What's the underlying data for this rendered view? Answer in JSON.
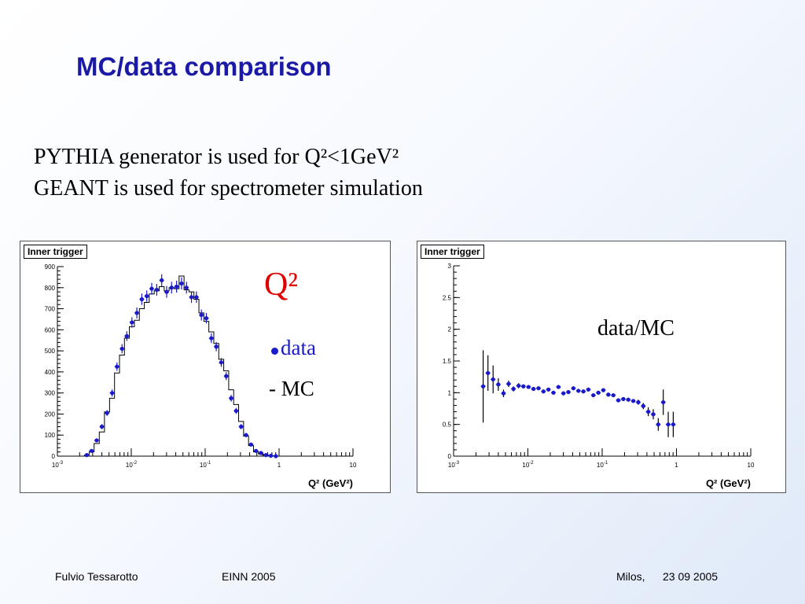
{
  "slide": {
    "title": "MC/data comparison",
    "bullets": [
      "PYTHIA generator is used for Q²<1GeV²",
      "GEANT is used for spectrometer simulation"
    ],
    "footer": {
      "author": "Fulvio Tessarotto",
      "conference": "EINN 2005",
      "place": "Milos,",
      "date": "23 09 2005"
    }
  },
  "annotations": {
    "q2": "Q²",
    "data": "data",
    "mc": "- MC",
    "ratio": "data/MC"
  },
  "colors": {
    "title": "#1a1aa6",
    "data_points": "#1a1acc",
    "q2_label": "#e00000",
    "mc_histogram": "#000000"
  },
  "chart_data": [
    {
      "type": "scatter",
      "title": "Inner trigger",
      "xlabel": "Q² (GeV²)",
      "ylabel": "",
      "xscale": "log",
      "xlim": [
        0.001,
        10
      ],
      "ylim": [
        0,
        900
      ],
      "xticks": [
        "10-3",
        "10-2",
        "10-1",
        "1",
        "10"
      ],
      "yticks": [
        0,
        100,
        200,
        300,
        400,
        500,
        600,
        700,
        800,
        900
      ],
      "legend": "top-left",
      "grid": false,
      "series": [
        {
          "name": "data",
          "x": [
            0.0025,
            0.0029,
            0.0034,
            0.004,
            0.0047,
            0.0055,
            0.0064,
            0.0075,
            0.0087,
            0.0102,
            0.0119,
            0.0139,
            0.0162,
            0.0189,
            0.0221,
            0.0258,
            0.0301,
            0.0351,
            0.041,
            0.0479,
            0.0559,
            0.0652,
            0.0761,
            0.0889,
            0.1037,
            0.1211,
            0.1413,
            0.165,
            0.1926,
            0.2248,
            0.2624,
            0.3063,
            0.3576,
            0.4174,
            0.4873,
            0.5688,
            0.664,
            0.7751,
            0.9048
          ],
          "y": [
            5,
            25,
            75,
            140,
            205,
            300,
            425,
            510,
            570,
            635,
            680,
            745,
            760,
            795,
            790,
            835,
            780,
            800,
            805,
            820,
            800,
            755,
            755,
            670,
            655,
            560,
            520,
            445,
            380,
            275,
            215,
            140,
            100,
            55,
            25,
            15,
            5,
            2,
            0
          ],
          "yerr": [
            4,
            6,
            9,
            12,
            14,
            17,
            20,
            22,
            23,
            25,
            26,
            27,
            27,
            28,
            28,
            29,
            28,
            28,
            28,
            29,
            28,
            27,
            27,
            26,
            25,
            23,
            22,
            21,
            19,
            16,
            14,
            12,
            10,
            7,
            5,
            4,
            2,
            1,
            1
          ]
        },
        {
          "name": "MC",
          "x": [
            0.0025,
            0.0029,
            0.0034,
            0.004,
            0.0047,
            0.0055,
            0.0064,
            0.0075,
            0.0087,
            0.0102,
            0.0119,
            0.0139,
            0.0162,
            0.0189,
            0.0221,
            0.0258,
            0.0301,
            0.0351,
            0.041,
            0.0479,
            0.0559,
            0.0652,
            0.0761,
            0.0889,
            0.1037,
            0.1211,
            0.1413,
            0.165,
            0.1926,
            0.2248,
            0.2624,
            0.3063,
            0.3576,
            0.4174,
            0.4873,
            0.5688,
            0.664,
            0.7751,
            0.9048
          ],
          "y": [
            5,
            20,
            60,
            115,
            210,
            275,
            395,
            480,
            560,
            615,
            645,
            700,
            730,
            770,
            785,
            805,
            785,
            800,
            795,
            855,
            790,
            780,
            745,
            680,
            640,
            590,
            535,
            460,
            405,
            315,
            245,
            165,
            95,
            50,
            20,
            10,
            5,
            2,
            0
          ]
        }
      ]
    },
    {
      "type": "scatter",
      "title": "Inner trigger",
      "xlabel": "Q² (GeV²)",
      "ylabel": "",
      "xscale": "log",
      "xlim": [
        0.001,
        10
      ],
      "ylim": [
        0,
        3
      ],
      "xticks": [
        "10-3",
        "10-2",
        "10-1",
        "1",
        "10"
      ],
      "yticks": [
        "0",
        "0.5",
        "1",
        "1.5",
        "2",
        "2.5",
        "3"
      ],
      "legend": "top-left",
      "grid": false,
      "series": [
        {
          "name": "data/MC",
          "x": [
            0.0025,
            0.0029,
            0.0034,
            0.004,
            0.0047,
            0.0055,
            0.0064,
            0.0075,
            0.0087,
            0.0102,
            0.0119,
            0.0139,
            0.0162,
            0.0189,
            0.0221,
            0.0258,
            0.0301,
            0.0351,
            0.041,
            0.0479,
            0.0559,
            0.0652,
            0.0761,
            0.0889,
            0.1037,
            0.1211,
            0.1413,
            0.165,
            0.1926,
            0.2248,
            0.2624,
            0.3063,
            0.3576,
            0.4174,
            0.4873,
            0.5688,
            0.664,
            0.7751,
            0.9048
          ],
          "y": [
            1.1,
            1.31,
            1.21,
            1.13,
            0.99,
            1.14,
            1.06,
            1.11,
            1.1,
            1.09,
            1.06,
            1.07,
            1.02,
            1.05,
            1.0,
            1.09,
            0.99,
            1.01,
            1.07,
            1.03,
            1.02,
            1.05,
            0.96,
            1.0,
            1.04,
            0.97,
            0.96,
            0.88,
            0.9,
            0.89,
            0.87,
            0.85,
            0.79,
            0.7,
            0.66,
            0.5,
            0.85,
            0.5,
            0.5
          ],
          "yerr": [
            0.57,
            0.28,
            0.22,
            0.1,
            0.06,
            0.05,
            0.04,
            0.04,
            0.03,
            0.03,
            0.03,
            0.03,
            0.03,
            0.03,
            0.03,
            0.03,
            0.03,
            0.03,
            0.03,
            0.03,
            0.03,
            0.03,
            0.03,
            0.03,
            0.03,
            0.03,
            0.03,
            0.03,
            0.03,
            0.03,
            0.03,
            0.04,
            0.05,
            0.07,
            0.08,
            0.1,
            0.2,
            0.2,
            0.2
          ]
        }
      ]
    }
  ]
}
